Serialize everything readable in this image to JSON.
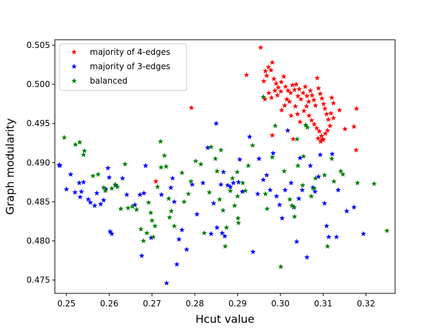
{
  "chart_data": {
    "type": "scatter",
    "title": "",
    "xlabel": "Hcut value",
    "ylabel": "Graph modularity",
    "xlim": [
      0.2473,
      0.3268
    ],
    "ylim": [
      0.4733,
      0.5057
    ],
    "x_ticks": [
      "0.25",
      "0.26",
      "0.27",
      "0.28",
      "0.29",
      "0.30",
      "0.31",
      "0.32"
    ],
    "y_ticks": [
      "0.475",
      "0.480",
      "0.485",
      "0.490",
      "0.495",
      "0.500",
      "0.505"
    ],
    "x_tick_values": [
      0.25,
      0.26,
      0.27,
      0.28,
      0.29,
      0.3,
      0.31,
      0.32
    ],
    "y_tick_values": [
      0.475,
      0.48,
      0.485,
      0.49,
      0.495,
      0.5,
      0.505
    ],
    "marker": "star",
    "grid": false,
    "legend_position": "upper-left",
    "series": [
      {
        "name": "majority of 4-edges",
        "color": "#ff0000",
        "points": [
          [
            0.2954,
            0.5047
          ],
          [
            0.2921,
            0.5012
          ],
          [
            0.2981,
            0.5028
          ],
          [
            0.2792,
            0.497
          ],
          [
            0.2709,
            0.4876
          ],
          [
            0.2965,
            0.5017
          ],
          [
            0.2972,
            0.5022
          ],
          [
            0.2968,
            0.5011
          ],
          [
            0.2978,
            0.5018
          ],
          [
            0.2961,
            0.5004
          ],
          [
            0.2985,
            0.5007
          ],
          [
            0.299,
            0.5001
          ],
          [
            0.2995,
            0.4996
          ],
          [
            0.3002,
            0.5003
          ],
          [
            0.3008,
            0.501
          ],
          [
            0.2964,
            0.4981
          ],
          [
            0.2979,
            0.4983
          ],
          [
            0.2973,
            0.4989
          ],
          [
            0.2987,
            0.4992
          ],
          [
            0.2993,
            0.4986
          ],
          [
            0.3001,
            0.4991
          ],
          [
            0.3012,
            0.4997
          ],
          [
            0.3018,
            0.4992
          ],
          [
            0.3024,
            0.4989
          ],
          [
            0.3015,
            0.4981
          ],
          [
            0.3021,
            0.4978
          ],
          [
            0.3028,
            0.4999
          ],
          [
            0.3033,
            0.4993
          ],
          [
            0.3037,
            0.5
          ],
          [
            0.3044,
            0.4994
          ],
          [
            0.3041,
            0.4985
          ],
          [
            0.3048,
            0.4981
          ],
          [
            0.3053,
            0.4989
          ],
          [
            0.3058,
            0.4997
          ],
          [
            0.3062,
            0.4985
          ],
          [
            0.3066,
            0.4978
          ],
          [
            0.307,
            0.4992
          ],
          [
            0.3074,
            0.4986
          ],
          [
            0.3078,
            0.498
          ],
          [
            0.3082,
            0.4973
          ],
          [
            0.3086,
            0.5008
          ],
          [
            0.3089,
            0.4995
          ],
          [
            0.3093,
            0.4988
          ],
          [
            0.3097,
            0.4982
          ],
          [
            0.3101,
            0.4975
          ],
          [
            0.3104,
            0.4969
          ],
          [
            0.3108,
            0.4962
          ],
          [
            0.3112,
            0.4955
          ],
          [
            0.3116,
            0.4947
          ],
          [
            0.312,
            0.4983
          ],
          [
            0.3124,
            0.4976
          ],
          [
            0.3055,
            0.4966
          ],
          [
            0.3061,
            0.4972
          ],
          [
            0.3067,
            0.496
          ],
          [
            0.3073,
            0.4954
          ],
          [
            0.3079,
            0.4949
          ],
          [
            0.3085,
            0.4944
          ],
          [
            0.3091,
            0.494
          ],
          [
            0.3096,
            0.4934
          ],
          [
            0.31,
            0.4929
          ],
          [
            0.3105,
            0.4937
          ],
          [
            0.311,
            0.4941
          ],
          [
            0.3088,
            0.4931
          ],
          [
            0.3094,
            0.4927
          ],
          [
            0.3099,
            0.493
          ],
          [
            0.3118,
            0.4963
          ],
          [
            0.3124,
            0.4957
          ],
          [
            0.3138,
            0.4967
          ],
          [
            0.3151,
            0.4943
          ],
          [
            0.3172,
            0.4946
          ],
          [
            0.3178,
            0.4969
          ],
          [
            0.3177,
            0.4916
          ],
          [
            0.303,
            0.493
          ],
          [
            0.3003,
            0.4967
          ],
          [
            0.2981,
            0.4935
          ],
          [
            0.3046,
            0.4952
          ],
          [
            0.3035,
            0.4972
          ],
          [
            0.304,
            0.4962
          ],
          [
            0.301,
            0.4973
          ],
          [
            0.3025,
            0.496
          ]
        ]
      },
      {
        "name": "majority of 3-edges",
        "color": "#0000ff",
        "points": [
          [
            0.2483,
            0.4897
          ],
          [
            0.2485,
            0.4896
          ],
          [
            0.25,
            0.4866
          ],
          [
            0.251,
            0.4885
          ],
          [
            0.252,
            0.4862
          ],
          [
            0.253,
            0.4874
          ],
          [
            0.2535,
            0.4863
          ],
          [
            0.254,
            0.4875
          ],
          [
            0.2532,
            0.4856
          ],
          [
            0.2551,
            0.4853
          ],
          [
            0.2556,
            0.4849
          ],
          [
            0.2566,
            0.4845
          ],
          [
            0.2571,
            0.4861
          ],
          [
            0.258,
            0.4847
          ],
          [
            0.2587,
            0.4852
          ],
          [
            0.2592,
            0.4866
          ],
          [
            0.2597,
            0.4893
          ],
          [
            0.26,
            0.4881
          ],
          [
            0.2602,
            0.4812
          ],
          [
            0.2606,
            0.4809
          ],
          [
            0.2615,
            0.4871
          ],
          [
            0.2631,
            0.488
          ],
          [
            0.2641,
            0.4859
          ],
          [
            0.266,
            0.4846
          ],
          [
            0.2672,
            0.4859
          ],
          [
            0.2676,
            0.4781
          ],
          [
            0.2681,
            0.4861
          ],
          [
            0.2685,
            0.4896
          ],
          [
            0.2698,
            0.4804
          ],
          [
            0.2722,
            0.4859
          ],
          [
            0.2734,
            0.4746
          ],
          [
            0.2744,
            0.4868
          ],
          [
            0.2748,
            0.488
          ],
          [
            0.2752,
            0.485
          ],
          [
            0.2758,
            0.477
          ],
          [
            0.2763,
            0.4802
          ],
          [
            0.277,
            0.4814
          ],
          [
            0.2781,
            0.4789
          ],
          [
            0.2794,
            0.4872
          ],
          [
            0.2805,
            0.4834
          ],
          [
            0.2819,
            0.4874
          ],
          [
            0.283,
            0.4919
          ],
          [
            0.2838,
            0.4809
          ],
          [
            0.2844,
            0.4848
          ],
          [
            0.285,
            0.495
          ],
          [
            0.2852,
            0.4817
          ],
          [
            0.2861,
            0.4872
          ],
          [
            0.2864,
            0.481
          ],
          [
            0.2867,
            0.4888
          ],
          [
            0.287,
            0.4806
          ],
          [
            0.2877,
            0.4871
          ],
          [
            0.2883,
            0.4869
          ],
          [
            0.289,
            0.4874
          ],
          [
            0.2902,
            0.4875
          ],
          [
            0.2905,
            0.4904
          ],
          [
            0.2911,
            0.4863
          ],
          [
            0.2928,
            0.4933
          ],
          [
            0.2936,
            0.4786
          ],
          [
            0.2947,
            0.486
          ],
          [
            0.296,
            0.4878
          ],
          [
            0.2968,
            0.4884
          ],
          [
            0.2976,
            0.4865
          ],
          [
            0.2983,
            0.4912
          ],
          [
            0.2991,
            0.4857
          ],
          [
            0.2998,
            0.4846
          ],
          [
            0.3004,
            0.4829
          ],
          [
            0.3011,
            0.4865
          ],
          [
            0.3017,
            0.4941
          ],
          [
            0.3025,
            0.4874
          ],
          [
            0.3032,
            0.4843
          ],
          [
            0.3038,
            0.4799
          ],
          [
            0.3043,
            0.4854
          ],
          [
            0.3051,
            0.4865
          ],
          [
            0.3062,
            0.4779
          ],
          [
            0.307,
            0.4896
          ],
          [
            0.3076,
            0.4868
          ],
          [
            0.3081,
            0.4863
          ],
          [
            0.3089,
            0.4882
          ],
          [
            0.3093,
            0.491
          ],
          [
            0.3103,
            0.4848
          ],
          [
            0.3108,
            0.4819
          ],
          [
            0.3113,
            0.4805
          ],
          [
            0.3121,
            0.4911
          ],
          [
            0.3131,
            0.4805
          ],
          [
            0.3135,
            0.4865
          ],
          [
            0.3155,
            0.4838
          ],
          [
            0.3172,
            0.4843
          ],
          [
            0.3194,
            0.4809
          ],
          [
            0.3046,
            0.4906
          ],
          [
            0.295,
            0.4905
          ]
        ]
      },
      {
        "name": "balanced",
        "color": "#008000",
        "points": [
          [
            0.2495,
            0.4932
          ],
          [
            0.2521,
            0.4923
          ],
          [
            0.2531,
            0.4926
          ],
          [
            0.2542,
            0.4915
          ],
          [
            0.254,
            0.491
          ],
          [
            0.2562,
            0.4883
          ],
          [
            0.2574,
            0.4885
          ],
          [
            0.2587,
            0.4868
          ],
          [
            0.2591,
            0.4864
          ],
          [
            0.2606,
            0.4867
          ],
          [
            0.2614,
            0.4872
          ],
          [
            0.2619,
            0.4869
          ],
          [
            0.2627,
            0.4841
          ],
          [
            0.2637,
            0.4898
          ],
          [
            0.2644,
            0.4842
          ],
          [
            0.2654,
            0.4844
          ],
          [
            0.2664,
            0.484
          ],
          [
            0.2674,
            0.4815
          ],
          [
            0.268,
            0.48
          ],
          [
            0.2688,
            0.481
          ],
          [
            0.2692,
            0.4849
          ],
          [
            0.2697,
            0.4836
          ],
          [
            0.27,
            0.4826
          ],
          [
            0.2703,
            0.4805
          ],
          [
            0.2707,
            0.4819
          ],
          [
            0.2713,
            0.4869
          ],
          [
            0.272,
            0.4927
          ],
          [
            0.2721,
            0.4894
          ],
          [
            0.2729,
            0.4909
          ],
          [
            0.2733,
            0.4895
          ],
          [
            0.2739,
            0.4854
          ],
          [
            0.2741,
            0.483
          ],
          [
            0.2745,
            0.4838
          ],
          [
            0.2752,
            0.4819
          ],
          [
            0.277,
            0.4887
          ],
          [
            0.2775,
            0.485
          ],
          [
            0.2785,
            0.486
          ],
          [
            0.2791,
            0.4876
          ],
          [
            0.2802,
            0.4902
          ],
          [
            0.2814,
            0.4898
          ],
          [
            0.2822,
            0.481
          ],
          [
            0.2834,
            0.4862
          ],
          [
            0.2838,
            0.492
          ],
          [
            0.2848,
            0.4905
          ],
          [
            0.2852,
            0.4889
          ],
          [
            0.2858,
            0.4853
          ],
          [
            0.2861,
            0.4916
          ],
          [
            0.2866,
            0.4839
          ],
          [
            0.2871,
            0.4793
          ],
          [
            0.2874,
            0.4817
          ],
          [
            0.2883,
            0.4864
          ],
          [
            0.2888,
            0.488
          ],
          [
            0.2893,
            0.4845
          ],
          [
            0.2899,
            0.4888
          ],
          [
            0.29,
            0.4857
          ],
          [
            0.2901,
            0.4829
          ],
          [
            0.2902,
            0.4823
          ],
          [
            0.2912,
            0.4874
          ],
          [
            0.2918,
            0.4864
          ],
          [
            0.2925,
            0.4896
          ],
          [
            0.2935,
            0.4922
          ],
          [
            0.2965,
            0.486
          ],
          [
            0.2969,
            0.4841
          ],
          [
            0.2981,
            0.4907
          ],
          [
            0.2988,
            0.4947
          ],
          [
            0.3001,
            0.4767
          ],
          [
            0.3009,
            0.4889
          ],
          [
            0.3022,
            0.4853
          ],
          [
            0.3031,
            0.4843
          ],
          [
            0.3033,
            0.4831
          ],
          [
            0.3041,
            0.4896
          ],
          [
            0.3052,
            0.4871
          ],
          [
            0.3054,
            0.4908
          ],
          [
            0.3063,
            0.4945
          ],
          [
            0.3072,
            0.4857
          ],
          [
            0.3082,
            0.488
          ],
          [
            0.3103,
            0.4884
          ],
          [
            0.311,
            0.4793
          ],
          [
            0.312,
            0.4905
          ],
          [
            0.3125,
            0.4876
          ],
          [
            0.3141,
            0.4889
          ],
          [
            0.3146,
            0.4885
          ],
          [
            0.318,
            0.4874
          ],
          [
            0.3219,
            0.4873
          ],
          [
            0.3249,
            0.4813
          ],
          [
            0.3027,
            0.4845
          ],
          [
            0.3039,
            0.493
          ],
          [
            0.3059,
            0.4948
          ],
          [
            0.296,
            0.4984
          ],
          [
            0.3079,
            0.4867
          ]
        ]
      }
    ]
  }
}
